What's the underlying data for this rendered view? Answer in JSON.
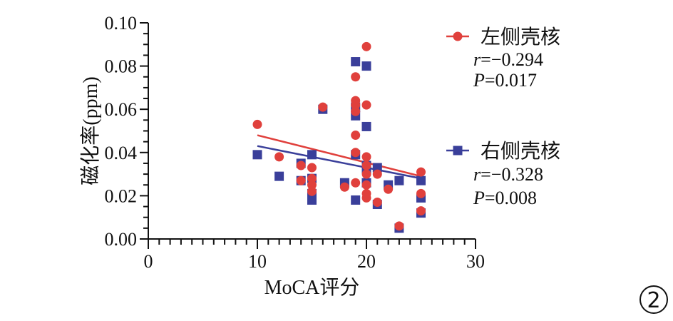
{
  "chart_data": {
    "type": "scatter",
    "title": "",
    "xlabel": "MoCA评分",
    "ylabel": "磁化率(ppm)",
    "xlim": [
      0,
      30
    ],
    "ylim": [
      0.0,
      0.1
    ],
    "x_ticks": [
      0,
      10,
      20,
      30
    ],
    "x_tick_labels": [
      "0",
      "10",
      "20",
      "30"
    ],
    "y_ticks": [
      0.0,
      0.02,
      0.04,
      0.06,
      0.08,
      0.1
    ],
    "y_tick_labels": [
      "0.00",
      "0.02",
      "0.04",
      "0.06",
      "0.08",
      "0.10"
    ],
    "grid": false,
    "legend_position": "right",
    "series": [
      {
        "name": "左侧壳核",
        "color": "#e0403c",
        "marker": "circle",
        "r_label": "r",
        "r_value": "=−0.294",
        "p_label": "P",
        "p_value": "=0.017",
        "points": [
          [
            10,
            0.053
          ],
          [
            12,
            0.038
          ],
          [
            14,
            0.034
          ],
          [
            14,
            0.027
          ],
          [
            15,
            0.033
          ],
          [
            15,
            0.028
          ],
          [
            15,
            0.025
          ],
          [
            15,
            0.022
          ],
          [
            16,
            0.061
          ],
          [
            18,
            0.024
          ],
          [
            19,
            0.075
          ],
          [
            19,
            0.064
          ],
          [
            19,
            0.062
          ],
          [
            19,
            0.059
          ],
          [
            19,
            0.048
          ],
          [
            19,
            0.04
          ],
          [
            19,
            0.026
          ],
          [
            20,
            0.089
          ],
          [
            20,
            0.062
          ],
          [
            20,
            0.038
          ],
          [
            20,
            0.034
          ],
          [
            20,
            0.03
          ],
          [
            20,
            0.025
          ],
          [
            20,
            0.021
          ],
          [
            20,
            0.019
          ],
          [
            21,
            0.03
          ],
          [
            21,
            0.017
          ],
          [
            22,
            0.023
          ],
          [
            23,
            0.006
          ],
          [
            25,
            0.031
          ],
          [
            25,
            0.021
          ],
          [
            25,
            0.013
          ]
        ],
        "fit": {
          "x": [
            10,
            25
          ],
          "y": [
            0.048,
            0.029
          ]
        }
      },
      {
        "name": "右侧壳核",
        "color": "#3a3f9a",
        "marker": "square",
        "r_label": "r",
        "r_value": "=−0.328",
        "p_label": "P",
        "p_value": "=0.008",
        "points": [
          [
            10,
            0.039
          ],
          [
            12,
            0.029
          ],
          [
            14,
            0.035
          ],
          [
            14,
            0.027
          ],
          [
            15,
            0.039
          ],
          [
            15,
            0.028
          ],
          [
            15,
            0.021
          ],
          [
            15,
            0.018
          ],
          [
            16,
            0.06
          ],
          [
            18,
            0.026
          ],
          [
            19,
            0.082
          ],
          [
            19,
            0.061
          ],
          [
            19,
            0.057
          ],
          [
            19,
            0.039
          ],
          [
            19,
            0.018
          ],
          [
            20,
            0.08
          ],
          [
            20,
            0.052
          ],
          [
            20,
            0.034
          ],
          [
            20,
            0.032
          ],
          [
            20,
            0.026
          ],
          [
            21,
            0.033
          ],
          [
            21,
            0.016
          ],
          [
            22,
            0.025
          ],
          [
            23,
            0.027
          ],
          [
            23,
            0.005
          ],
          [
            25,
            0.027
          ],
          [
            25,
            0.019
          ],
          [
            25,
            0.012
          ]
        ],
        "fit": {
          "x": [
            10,
            25
          ],
          "y": [
            0.043,
            0.028
          ]
        }
      }
    ]
  },
  "badge": {
    "label": "2"
  }
}
